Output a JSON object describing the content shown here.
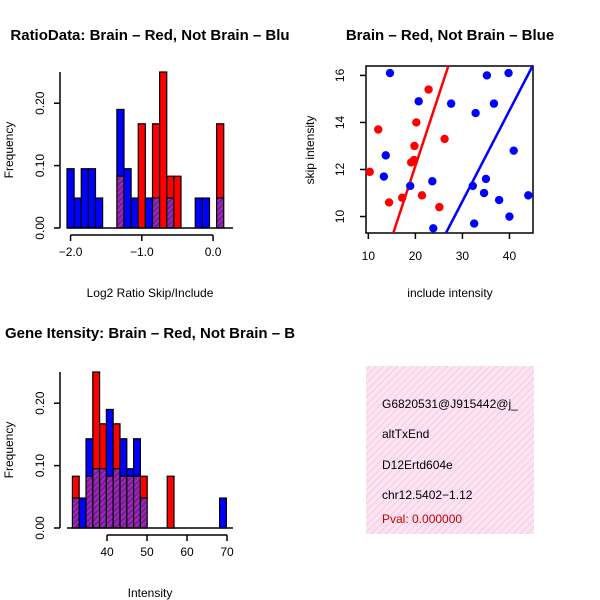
{
  "colors": {
    "red": "#ff0000",
    "blue": "#0000ff",
    "purple": "#7b1fa2",
    "hatch": "#ff3bd0",
    "info_bg": "#fbe3f1",
    "info_hatch": "#f2b5da",
    "pval": "#cc0000"
  },
  "chart_data": [
    {
      "id": "ratio",
      "type": "bar",
      "title": "RatioData: Brain – Red, Not Brain – Blu",
      "xlabel": "Log2 Ratio Skip/Include",
      "ylabel": "Frequency",
      "xlim": [
        -2.05,
        0.28
      ],
      "ylim": [
        0,
        0.25
      ],
      "xticks": [
        -2.0,
        -1.0,
        0.0
      ],
      "xtick_labels": [
        "−2.0",
        "−1.0",
        "0.0"
      ],
      "yticks": [
        0.0,
        0.1,
        0.2
      ],
      "ytick_labels": [
        "0.00",
        "0.10",
        "0.20"
      ],
      "bin_width": 0.1,
      "series": [
        {
          "name": "Not Brain",
          "color": "blue",
          "bins": [
            {
              "x": -2.0,
              "v": 0.095
            },
            {
              "x": -1.9,
              "v": 0.048
            },
            {
              "x": -1.8,
              "v": 0.095
            },
            {
              "x": -1.7,
              "v": 0.095
            },
            {
              "x": -1.6,
              "v": 0.048
            },
            {
              "x": -1.3,
              "v": 0.19
            },
            {
              "x": -1.2,
              "v": 0.095
            },
            {
              "x": -1.1,
              "v": 0.048
            },
            {
              "x": -0.9,
              "v": 0.048
            },
            {
              "x": -0.8,
              "v": 0.048
            },
            {
              "x": -0.6,
              "v": 0.048
            },
            {
              "x": -0.2,
              "v": 0.048
            },
            {
              "x": -0.1,
              "v": 0.048
            },
            {
              "x": 0.1,
              "v": 0.048
            }
          ]
        },
        {
          "name": "Brain",
          "color": "red",
          "bins": [
            {
              "x": -1.3,
              "v": 0.083
            },
            {
              "x": -1.0,
              "v": 0.167
            },
            {
              "x": -0.8,
              "v": 0.167
            },
            {
              "x": -0.7,
              "v": 0.25
            },
            {
              "x": -0.6,
              "v": 0.083
            },
            {
              "x": -0.5,
              "v": 0.083
            },
            {
              "x": 0.1,
              "v": 0.167
            }
          ]
        }
      ]
    },
    {
      "id": "scatter",
      "type": "scatter",
      "title": "Brain – Red, Not Brain – Blue",
      "xlabel": "include intensity",
      "ylabel": "skip intensity",
      "xlim": [
        9.5,
        45
      ],
      "ylim": [
        9.3,
        16.4
      ],
      "xticks": [
        10,
        20,
        30,
        40
      ],
      "xtick_labels": [
        "10",
        "20",
        "30",
        "40"
      ],
      "yticks": [
        10,
        12,
        14,
        16
      ],
      "ytick_labels": [
        "10",
        "12",
        "14",
        "16"
      ],
      "series": [
        {
          "name": "Brain",
          "color": "red",
          "points": [
            [
              10.3,
              11.9
            ],
            [
              12.1,
              13.7
            ],
            [
              14.4,
              10.6
            ],
            [
              17.2,
              10.8
            ],
            [
              19.1,
              12.3
            ],
            [
              19.7,
              12.4
            ],
            [
              19.8,
              13.0
            ],
            [
              20.2,
              14.0
            ],
            [
              21.4,
              10.9
            ],
            [
              22.8,
              15.4
            ],
            [
              25.1,
              10.4
            ],
            [
              26.2,
              13.3
            ]
          ],
          "fit": [
            [
              15.3,
              9.3
            ],
            [
              27.0,
              16.4
            ]
          ]
        },
        {
          "name": "Not Brain",
          "color": "blue",
          "points": [
            [
              13.3,
              11.7
            ],
            [
              13.7,
              12.6
            ],
            [
              14.6,
              16.1
            ],
            [
              18.9,
              11.3
            ],
            [
              20.7,
              14.9
            ],
            [
              23.8,
              9.5
            ],
            [
              23.6,
              11.5
            ],
            [
              27.6,
              14.8
            ],
            [
              32.2,
              11.3
            ],
            [
              32.5,
              9.7
            ],
            [
              32.8,
              14.4
            ],
            [
              34.6,
              11.0
            ],
            [
              35.0,
              11.6
            ],
            [
              35.2,
              16.0
            ],
            [
              36.7,
              14.8
            ],
            [
              37.8,
              10.7
            ],
            [
              39.8,
              16.1
            ],
            [
              40.0,
              10.0
            ],
            [
              40.9,
              12.8
            ],
            [
              44.0,
              10.9
            ]
          ],
          "fit": [
            [
              26.5,
              9.3
            ],
            [
              44.9,
              16.4
            ]
          ]
        }
      ]
    },
    {
      "id": "intensity",
      "type": "bar",
      "title": "Gene Itensity: Brain – Red, Not Brain – B",
      "xlabel": "Intensity",
      "ylabel": "Frequency",
      "xlim": [
        30.0,
        71.5
      ],
      "ylim": [
        0,
        0.25
      ],
      "xticks": [
        40,
        50,
        60,
        70
      ],
      "xtick_labels": [
        "40",
        "50",
        "60",
        "70"
      ],
      "yticks": [
        0.0,
        0.1,
        0.2
      ],
      "ytick_labels": [
        "0.00",
        "0.10",
        "0.20"
      ],
      "bin_width": 1.7,
      "series": [
        {
          "name": "Not Brain",
          "color": "blue",
          "bins": [
            {
              "x": 32.2,
              "v": 0.048
            },
            {
              "x": 33.9,
              "v": 0.048
            },
            {
              "x": 35.6,
              "v": 0.143
            },
            {
              "x": 37.3,
              "v": 0.095
            },
            {
              "x": 39.0,
              "v": 0.095
            },
            {
              "x": 40.7,
              "v": 0.19
            },
            {
              "x": 42.4,
              "v": 0.095
            },
            {
              "x": 44.1,
              "v": 0.143
            },
            {
              "x": 45.8,
              "v": 0.095
            },
            {
              "x": 47.5,
              "v": 0.143
            },
            {
              "x": 49.2,
              "v": 0.048
            },
            {
              "x": 69.0,
              "v": 0.048
            }
          ]
        },
        {
          "name": "Brain",
          "color": "red",
          "bins": [
            {
              "x": 32.2,
              "v": 0.083
            },
            {
              "x": 35.6,
              "v": 0.083
            },
            {
              "x": 37.3,
              "v": 0.25
            },
            {
              "x": 39.0,
              "v": 0.167
            },
            {
              "x": 40.7,
              "v": 0.083
            },
            {
              "x": 42.4,
              "v": 0.167
            },
            {
              "x": 44.1,
              "v": 0.083
            },
            {
              "x": 45.8,
              "v": 0.083
            },
            {
              "x": 47.5,
              "v": 0.083
            },
            {
              "x": 49.2,
              "v": 0.083
            },
            {
              "x": 55.9,
              "v": 0.083
            }
          ]
        }
      ]
    }
  ],
  "info_box": {
    "line1": "G6820531@J915442@j_",
    "line2": "altTxEnd",
    "line3": "D12Ertd604e",
    "line4": "chr12.5402−1.12",
    "pval": "Pval: 0.000000"
  }
}
